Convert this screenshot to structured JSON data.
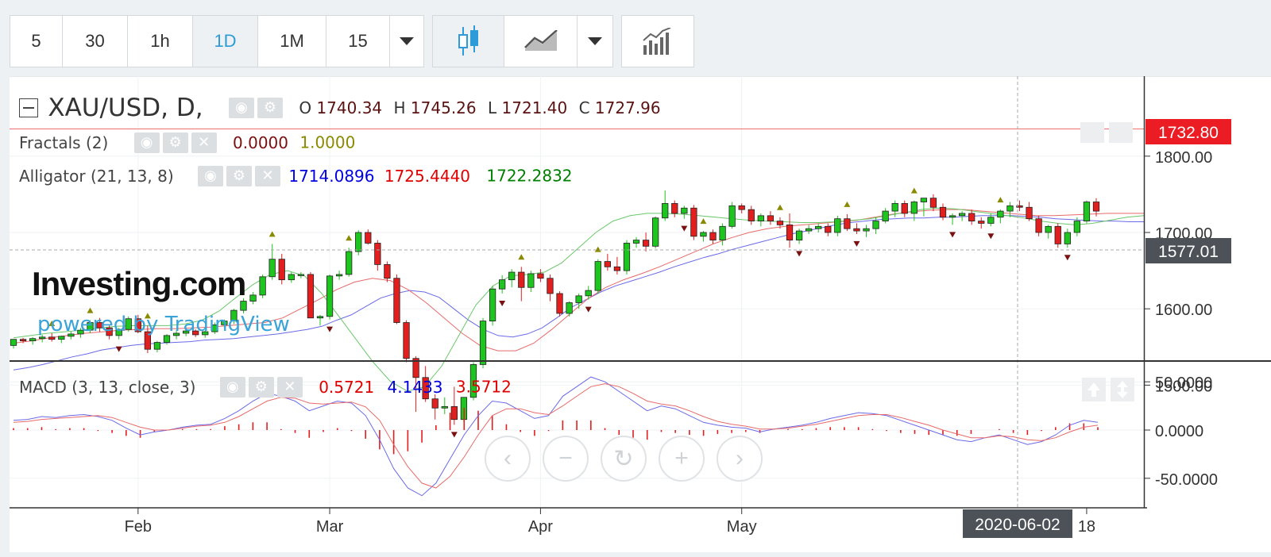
{
  "toolbar": {
    "intervals": [
      "5",
      "30",
      "1h",
      "1D",
      "1M",
      "15"
    ],
    "active_interval": "1D",
    "dropdown_icon": "caret-down-icon",
    "chart_type_icons": [
      "candlestick-icon",
      "line-chart-icon",
      "caret-down-icon"
    ],
    "indicators_icon": "indicators-icon"
  },
  "legend": {
    "symbol": "XAU/USD, D,",
    "ohlc": [
      {
        "label": "O",
        "value": "1740.34"
      },
      {
        "label": "H",
        "value": "1745.26"
      },
      {
        "label": "L",
        "value": "1721.40"
      },
      {
        "label": "C",
        "value": "1727.96"
      }
    ],
    "fractals": {
      "name": "Fractals (2)",
      "values": [
        "0.0000",
        "1.0000"
      ]
    },
    "alligator": {
      "name": "Alligator (21, 13, 8)",
      "values": [
        "1714.0896",
        "1725.4440",
        "1722.2832"
      ]
    },
    "macd": {
      "name": "MACD (3, 13, close, 3)",
      "values": [
        "0.5721",
        "4.1433",
        "3.5712"
      ]
    }
  },
  "brand": {
    "logo": "Investing.com",
    "tagline": "powered by TradingView"
  },
  "price_tags": {
    "last": "1732.80",
    "crosshair": "1577.01"
  },
  "time_tag": "2020-06-02",
  "colors": {
    "up": "#1ec51e",
    "down": "#e31e1e",
    "jaw": "#6a6ae8",
    "teeth": "#e86a6a",
    "lips": "#6ac86a",
    "accent": "#2d9bd8"
  },
  "chart_data": {
    "type": "candlestick",
    "symbol": "XAU/USD",
    "interval": "D",
    "price_axis": {
      "ticks": [
        "1800.00",
        "1700.00",
        "1600.00",
        "1500.00"
      ],
      "range": [
        1440,
        1810
      ]
    },
    "macd_axis": {
      "ticks": [
        "50.0000",
        "0.0000",
        "-50.0000"
      ],
      "range": [
        -75,
        65
      ]
    },
    "x_axis": {
      "ticks": [
        "Feb",
        "Mar",
        "Apr",
        "May",
        "18"
      ]
    },
    "candles_ohlc": [
      [
        1552,
        1558,
        1548,
        1560
      ],
      [
        1560,
        1562,
        1555,
        1558
      ],
      [
        1558,
        1563,
        1553,
        1561
      ],
      [
        1561,
        1566,
        1556,
        1563
      ],
      [
        1563,
        1568,
        1557,
        1560
      ],
      [
        1560,
        1565,
        1555,
        1564
      ],
      [
        1564,
        1570,
        1560,
        1567
      ],
      [
        1567,
        1575,
        1562,
        1572
      ],
      [
        1572,
        1585,
        1568,
        1582
      ],
      [
        1582,
        1588,
        1570,
        1575
      ],
      [
        1575,
        1578,
        1560,
        1565
      ],
      [
        1565,
        1575,
        1560,
        1573
      ],
      [
        1573,
        1590,
        1570,
        1587
      ],
      [
        1587,
        1592,
        1568,
        1570
      ],
      [
        1570,
        1578,
        1542,
        1547
      ],
      [
        1547,
        1558,
        1543,
        1556
      ],
      [
        1556,
        1567,
        1553,
        1565
      ],
      [
        1565,
        1572,
        1560,
        1568
      ],
      [
        1568,
        1575,
        1564,
        1571
      ],
      [
        1571,
        1573,
        1563,
        1566
      ],
      [
        1566,
        1572,
        1562,
        1570
      ],
      [
        1570,
        1582,
        1567,
        1579
      ],
      [
        1579,
        1586,
        1575,
        1584
      ],
      [
        1584,
        1600,
        1580,
        1598
      ],
      [
        1598,
        1614,
        1594,
        1610
      ],
      [
        1610,
        1622,
        1606,
        1618
      ],
      [
        1618,
        1645,
        1614,
        1642
      ],
      [
        1642,
        1685,
        1638,
        1665
      ],
      [
        1665,
        1672,
        1632,
        1638
      ],
      [
        1638,
        1648,
        1634,
        1645
      ],
      [
        1645,
        1648,
        1640,
        1645
      ],
      [
        1645,
        1648,
        1590,
        1588
      ],
      [
        1588,
        1592,
        1578,
        1590
      ],
      [
        1590,
        1645,
        1586,
        1643
      ],
      [
        1643,
        1650,
        1638,
        1645
      ],
      [
        1645,
        1680,
        1642,
        1675
      ],
      [
        1675,
        1703,
        1670,
        1700
      ],
      [
        1700,
        1704,
        1684,
        1686
      ],
      [
        1686,
        1690,
        1650,
        1658
      ],
      [
        1658,
        1662,
        1635,
        1640
      ],
      [
        1640,
        1645,
        1580,
        1582
      ],
      [
        1582,
        1585,
        1530,
        1535
      ],
      [
        1535,
        1538,
        1465,
        1510
      ],
      [
        1510,
        1525,
        1478,
        1482
      ],
      [
        1482,
        1488,
        1455,
        1470
      ],
      [
        1470,
        1484,
        1462,
        1472
      ],
      [
        1472,
        1498,
        1448,
        1455
      ],
      [
        1455,
        1480,
        1452,
        1484
      ],
      [
        1484,
        1530,
        1480,
        1527
      ],
      [
        1527,
        1588,
        1522,
        1584
      ],
      [
        1584,
        1630,
        1578,
        1626
      ],
      [
        1626,
        1644,
        1620,
        1638
      ],
      [
        1638,
        1652,
        1628,
        1648
      ],
      [
        1648,
        1655,
        1610,
        1628
      ],
      [
        1628,
        1650,
        1622,
        1646
      ],
      [
        1646,
        1652,
        1635,
        1640
      ],
      [
        1640,
        1645,
        1610,
        1620
      ],
      [
        1620,
        1623,
        1590,
        1594
      ],
      [
        1594,
        1610,
        1590,
        1608
      ],
      [
        1608,
        1620,
        1600,
        1617
      ],
      [
        1617,
        1630,
        1612,
        1624
      ],
      [
        1624,
        1665,
        1620,
        1662
      ],
      [
        1662,
        1672,
        1650,
        1655
      ],
      [
        1655,
        1668,
        1645,
        1650
      ],
      [
        1650,
        1690,
        1645,
        1686
      ],
      [
        1686,
        1694,
        1680,
        1690
      ],
      [
        1690,
        1700,
        1675,
        1682
      ],
      [
        1682,
        1721,
        1679,
        1719
      ],
      [
        1719,
        1755,
        1715,
        1738
      ],
      [
        1738,
        1742,
        1720,
        1725
      ],
      [
        1725,
        1735,
        1718,
        1732
      ],
      [
        1732,
        1736,
        1690,
        1695
      ],
      [
        1695,
        1702,
        1688,
        1700
      ],
      [
        1700,
        1704,
        1685,
        1690
      ],
      [
        1690,
        1712,
        1683,
        1708
      ],
      [
        1708,
        1740,
        1705,
        1735
      ],
      [
        1735,
        1738,
        1725,
        1730
      ],
      [
        1730,
        1735,
        1710,
        1715
      ],
      [
        1715,
        1725,
        1708,
        1722
      ],
      [
        1722,
        1728,
        1710,
        1715
      ],
      [
        1715,
        1720,
        1705,
        1710
      ],
      [
        1710,
        1725,
        1680,
        1690
      ],
      [
        1690,
        1705,
        1685,
        1702
      ],
      [
        1702,
        1710,
        1698,
        1705
      ],
      [
        1705,
        1712,
        1700,
        1708
      ],
      [
        1708,
        1712,
        1695,
        1700
      ],
      [
        1700,
        1722,
        1695,
        1718
      ],
      [
        1718,
        1724,
        1702,
        1705
      ],
      [
        1705,
        1712,
        1698,
        1702
      ],
      [
        1702,
        1710,
        1694,
        1705
      ],
      [
        1705,
        1720,
        1698,
        1715
      ],
      [
        1715,
        1732,
        1712,
        1728
      ],
      [
        1728,
        1742,
        1720,
        1738
      ],
      [
        1738,
        1742,
        1720,
        1725
      ],
      [
        1725,
        1742,
        1715,
        1740
      ],
      [
        1740,
        1745,
        1721,
        1745
      ],
      [
        1745,
        1750,
        1728,
        1733
      ],
      [
        1733,
        1738,
        1716,
        1720
      ],
      [
        1720,
        1725,
        1710,
        1722
      ],
      [
        1722,
        1728,
        1715,
        1725
      ],
      [
        1725,
        1730,
        1710,
        1715
      ],
      [
        1715,
        1720,
        1705,
        1712
      ],
      [
        1712,
        1725,
        1708,
        1720
      ],
      [
        1720,
        1730,
        1712,
        1728
      ],
      [
        1728,
        1740,
        1720,
        1735
      ],
      [
        1735,
        1742,
        1728,
        1733
      ],
      [
        1733,
        1740,
        1715,
        1718
      ],
      [
        1718,
        1722,
        1695,
        1700
      ],
      [
        1700,
        1710,
        1692,
        1708
      ],
      [
        1708,
        1712,
        1680,
        1685
      ],
      [
        1685,
        1705,
        1680,
        1700
      ],
      [
        1700,
        1720,
        1695,
        1715
      ],
      [
        1715,
        1742,
        1712,
        1740
      ],
      [
        1740,
        1745,
        1721,
        1728
      ]
    ],
    "alligator": {
      "jaw": [
        1520,
        1523,
        1527,
        1532,
        1537,
        1541,
        1546,
        1549,
        1552,
        1554,
        1555,
        1556,
        1557,
        1559,
        1560,
        1561,
        1563,
        1565,
        1567,
        1570,
        1573,
        1577,
        1585,
        1592,
        1603,
        1614,
        1620,
        1624,
        1622,
        1615,
        1600,
        1585,
        1573,
        1565,
        1563,
        1567,
        1575,
        1588,
        1602,
        1612,
        1622,
        1630,
        1636,
        1642,
        1648,
        1655,
        1661,
        1667,
        1672,
        1678,
        1683,
        1688,
        1693,
        1698,
        1702,
        1706,
        1710,
        1713,
        1715,
        1717,
        1718,
        1719,
        1719,
        1720,
        1720,
        1721,
        1722,
        1722,
        1722,
        1721,
        1720,
        1718,
        1717,
        1716,
        1715,
        1715,
        1714,
        1714
      ],
      "teeth": [
        1555,
        1558,
        1562,
        1565,
        1568,
        1570,
        1572,
        1573,
        1574,
        1574,
        1575,
        1576,
        1578,
        1580,
        1582,
        1588,
        1600,
        1612,
        1625,
        1635,
        1640,
        1637,
        1625,
        1608,
        1588,
        1568,
        1552,
        1545,
        1545,
        1555,
        1573,
        1593,
        1613,
        1628,
        1638,
        1646,
        1655,
        1665,
        1675,
        1685,
        1693,
        1700,
        1705,
        1708,
        1710,
        1712,
        1714,
        1716,
        1720,
        1724,
        1727,
        1729,
        1730,
        1730,
        1728,
        1726,
        1724,
        1722,
        1722,
        1723,
        1724,
        1725,
        1725,
        1725
      ],
      "lips": [
        1562,
        1565,
        1568,
        1570,
        1572,
        1575,
        1577,
        1578,
        1578,
        1578,
        1580,
        1585,
        1597,
        1615,
        1632,
        1645,
        1650,
        1643,
        1620,
        1590,
        1560,
        1530,
        1505,
        1492,
        1498,
        1525,
        1565,
        1605,
        1630,
        1643,
        1645,
        1648,
        1660,
        1680,
        1700,
        1715,
        1722,
        1725,
        1725,
        1724,
        1722,
        1720,
        1718,
        1716,
        1715,
        1714,
        1713,
        1713,
        1714,
        1716,
        1718,
        1722,
        1726,
        1730,
        1732,
        1731,
        1728,
        1725,
        1722,
        1719,
        1715,
        1712,
        1710,
        1712,
        1716,
        1720,
        1722
      ]
    },
    "fractals_up_indices": [
      4,
      8,
      14,
      27,
      35,
      53,
      61,
      72,
      80,
      87,
      94,
      103
    ],
    "fractals_down_indices": [
      11,
      33,
      46,
      51,
      60,
      70,
      82,
      88,
      98,
      102,
      110
    ],
    "macd": {
      "macd": [
        10,
        11,
        14,
        13,
        15,
        16,
        14,
        10,
        2,
        -5,
        -2,
        0,
        3,
        5,
        6,
        12,
        20,
        30,
        38,
        35,
        30,
        20,
        25,
        30,
        28,
        15,
        -10,
        -40,
        -60,
        -68,
        -55,
        -30,
        -5,
        15,
        30,
        28,
        20,
        12,
        15,
        35,
        45,
        55,
        50,
        40,
        30,
        20,
        25,
        22,
        15,
        8,
        5,
        3,
        2,
        -2,
        1,
        3,
        5,
        8,
        12,
        15,
        18,
        17,
        15,
        10,
        5,
        0,
        -5,
        -10,
        -12,
        -8,
        -5,
        -10,
        -15,
        -12,
        -5,
        5,
        10,
        8
      ],
      "signal": [
        8,
        9,
        11,
        12,
        13,
        14,
        15,
        13,
        8,
        3,
        0,
        0,
        2,
        4,
        5,
        8,
        14,
        22,
        30,
        34,
        33,
        28,
        27,
        28,
        29,
        24,
        10,
        -15,
        -38,
        -55,
        -60,
        -48,
        -28,
        -5,
        15,
        22,
        22,
        18,
        16,
        25,
        35,
        45,
        48,
        45,
        38,
        30,
        27,
        25,
        20,
        14,
        9,
        6,
        4,
        1,
        1,
        2,
        4,
        6,
        9,
        12,
        15,
        16,
        16,
        13,
        9,
        5,
        0,
        -4,
        -8,
        -8,
        -6,
        -7,
        -10,
        -11,
        -8,
        -2,
        3,
        5
      ],
      "histogram": [
        2,
        2,
        3,
        1,
        2,
        2,
        -1,
        -3,
        -6,
        -8,
        -2,
        0,
        1,
        1,
        1,
        4,
        6,
        8,
        8,
        1,
        -3,
        -8,
        -2,
        2,
        -1,
        -9,
        -20,
        -25,
        -22,
        -13,
        5,
        18,
        23,
        20,
        15,
        6,
        -2,
        -6,
        -1,
        10,
        10,
        10,
        2,
        -5,
        -8,
        -10,
        -2,
        -3,
        -5,
        -6,
        -4,
        -3,
        -2,
        -3,
        0,
        1,
        1,
        2,
        3,
        3,
        3,
        1,
        -1,
        -3,
        -4,
        -5,
        -5,
        -6,
        -4,
        0,
        1,
        -3,
        -5,
        -1,
        3,
        7,
        7,
        3
      ]
    }
  }
}
